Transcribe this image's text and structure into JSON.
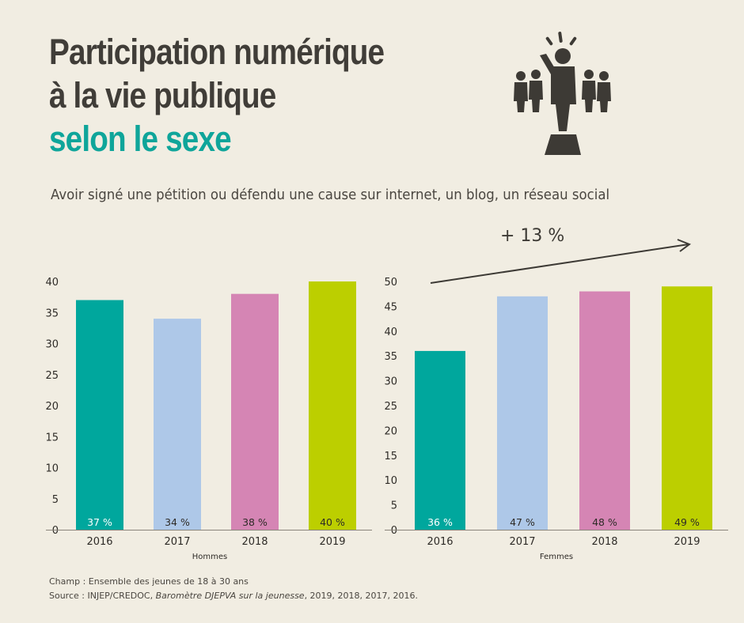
{
  "title": {
    "line1": "Participation numérique",
    "line2": "à la vie publique",
    "line3": "selon le sexe"
  },
  "subtitle": "Avoir signé une pétition ou défendu une cause sur internet, un blog, un réseau social",
  "annotation": "+ 13 %",
  "icon": "person-raising-hand-in-crowd-icon",
  "colors": {
    "teal": "#00a79d",
    "lightblue": "#aec8e8",
    "pink": "#d585b4",
    "lime": "#bccf00",
    "text": "#3d3a35",
    "background": "#f1ede2"
  },
  "chart_data": [
    {
      "type": "bar",
      "xlabel": "Hommes",
      "categories": [
        "2016",
        "2017",
        "2018",
        "2019"
      ],
      "values": [
        37,
        34,
        38,
        40
      ],
      "data_labels": [
        "37 %",
        "34 %",
        "38 %",
        "40 %"
      ],
      "ylim": [
        0,
        40
      ],
      "yticks": [
        0,
        5,
        10,
        15,
        20,
        25,
        30,
        35,
        40
      ],
      "grid": false
    },
    {
      "type": "bar",
      "xlabel": "Femmes",
      "categories": [
        "2016",
        "2017",
        "2018",
        "2019"
      ],
      "values": [
        36,
        47,
        48,
        49
      ],
      "data_labels": [
        "36 %",
        "47 %",
        "48 %",
        "49 %"
      ],
      "ylim": [
        0,
        50
      ],
      "yticks": [
        0,
        5,
        10,
        15,
        20,
        25,
        30,
        35,
        40,
        45,
        50
      ],
      "grid": false
    }
  ],
  "footer": {
    "champ": "Champ : Ensemble des jeunes de 18 à 30 ans",
    "source_prefix": "Source : INJEP/CREDOC, ",
    "source_title": "Baromètre DJEPVA sur la jeunesse",
    "source_suffix": ", 2019, 2018, 2017, 2016."
  }
}
